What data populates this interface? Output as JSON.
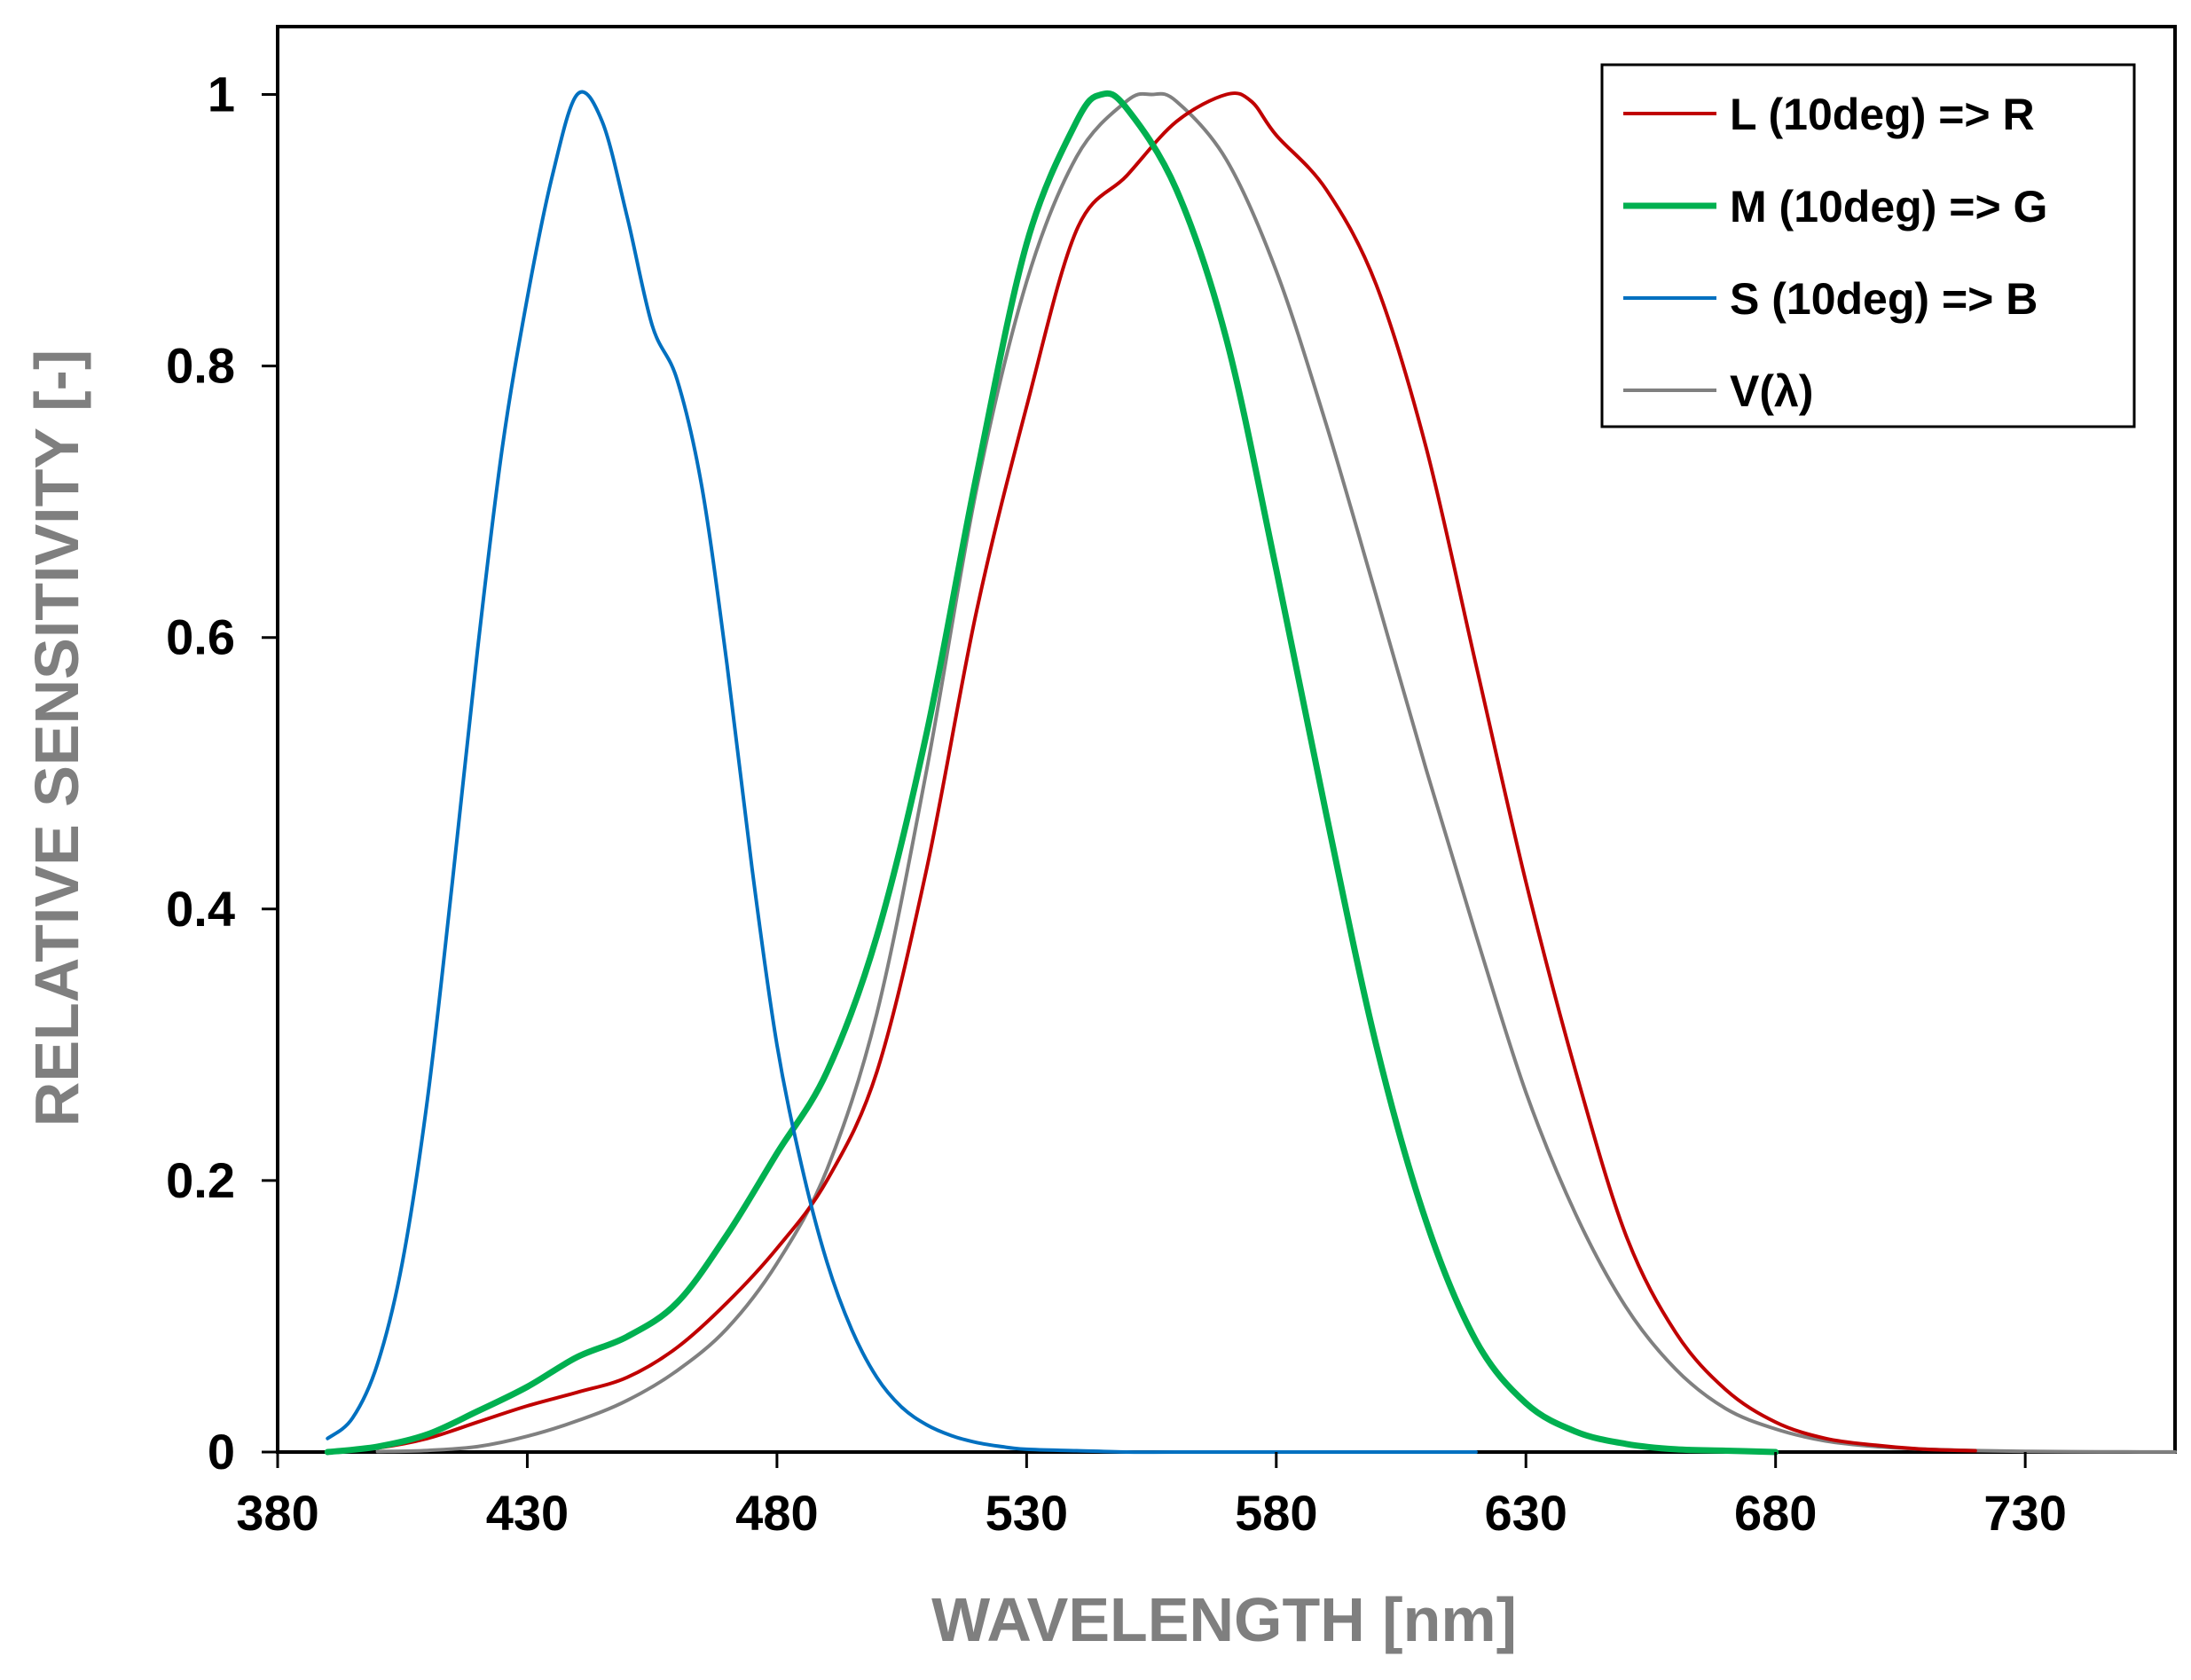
{
  "chart_data": {
    "type": "line",
    "xlabel": "WAVELENGTH [nm]",
    "ylabel": "RELATIVE SENSITIVITY [-]",
    "xlim": [
      380,
      760
    ],
    "ylim": [
      0,
      1.05
    ],
    "xticks": [
      380,
      430,
      480,
      530,
      580,
      630,
      680,
      730
    ],
    "yticks": [
      0,
      0.2,
      0.4,
      0.6,
      0.8,
      1
    ],
    "ytick_labels": [
      "0",
      "0.2",
      "0.4",
      "0.6",
      "0.8",
      "1"
    ],
    "grid": false,
    "legend_position": "top-right",
    "series": [
      {
        "name": "L (10deg) => R",
        "color": "#c00000",
        "x": [
          390,
          400,
          410,
          420,
          430,
          440,
          450,
          460,
          470,
          480,
          490,
          500,
          510,
          520,
          530,
          540,
          550,
          560,
          570,
          575,
          580,
          590,
          600,
          610,
          620,
          630,
          640,
          650,
          660,
          670,
          680,
          690,
          700,
          710,
          720
        ],
        "y": [
          0,
          0.003,
          0.01,
          0.022,
          0.034,
          0.044,
          0.055,
          0.077,
          0.11,
          0.15,
          0.2,
          0.28,
          0.43,
          0.62,
          0.77,
          0.9,
          0.94,
          0.98,
          1.0,
          0.995,
          0.97,
          0.93,
          0.86,
          0.74,
          0.58,
          0.42,
          0.28,
          0.16,
          0.088,
          0.046,
          0.022,
          0.01,
          0.005,
          0.002,
          0.001
        ]
      },
      {
        "name": "M (10deg) => G",
        "color": "#00b050",
        "x": [
          390,
          400,
          410,
          420,
          430,
          440,
          450,
          460,
          470,
          480,
          490,
          500,
          510,
          520,
          530,
          540,
          545,
          550,
          560,
          570,
          580,
          590,
          600,
          610,
          620,
          630,
          640,
          650,
          660,
          670,
          680
        ],
        "y": [
          0,
          0.004,
          0.013,
          0.03,
          0.048,
          0.07,
          0.085,
          0.11,
          0.16,
          0.22,
          0.28,
          0.38,
          0.53,
          0.72,
          0.89,
          0.98,
          1.0,
          0.99,
          0.93,
          0.82,
          0.65,
          0.47,
          0.3,
          0.17,
          0.082,
          0.036,
          0.015,
          0.006,
          0.002,
          0.001,
          0
        ]
      },
      {
        "name": "S (10deg) => B",
        "color": "#0070c0",
        "x": [
          390,
          395,
          400,
          405,
          410,
          415,
          420,
          425,
          430,
          435,
          440,
          445,
          450,
          455,
          460,
          465,
          470,
          475,
          480,
          485,
          490,
          495,
          500,
          505,
          510,
          515,
          520,
          525,
          530,
          540,
          550,
          560,
          580,
          600,
          620
        ],
        "y": [
          0.01,
          0.025,
          0.065,
          0.14,
          0.26,
          0.42,
          0.59,
          0.74,
          0.85,
          0.94,
          1.0,
          0.98,
          0.91,
          0.83,
          0.79,
          0.71,
          0.58,
          0.43,
          0.3,
          0.21,
          0.14,
          0.09,
          0.055,
          0.033,
          0.02,
          0.012,
          0.007,
          0.004,
          0.002,
          0.001,
          0,
          0,
          0,
          0,
          0
        ]
      },
      {
        "name": "V(λ)",
        "color": "#808080",
        "x": [
          400,
          410,
          420,
          430,
          440,
          450,
          460,
          470,
          480,
          490,
          500,
          510,
          520,
          530,
          540,
          550,
          555,
          560,
          570,
          580,
          590,
          600,
          610,
          620,
          630,
          640,
          650,
          660,
          670,
          680,
          690,
          700,
          710,
          720,
          730,
          740,
          750,
          760
        ],
        "y": [
          0.0004,
          0.0012,
          0.004,
          0.0116,
          0.023,
          0.038,
          0.06,
          0.091,
          0.139,
          0.208,
          0.323,
          0.503,
          0.71,
          0.862,
          0.954,
          0.995,
          1.0,
          0.995,
          0.952,
          0.87,
          0.757,
          0.631,
          0.503,
          0.381,
          0.265,
          0.175,
          0.107,
          0.061,
          0.032,
          0.017,
          0.0082,
          0.0041,
          0.0021,
          0.00105,
          0.00052,
          0.00025,
          0.00012,
          6e-05
        ]
      }
    ]
  }
}
